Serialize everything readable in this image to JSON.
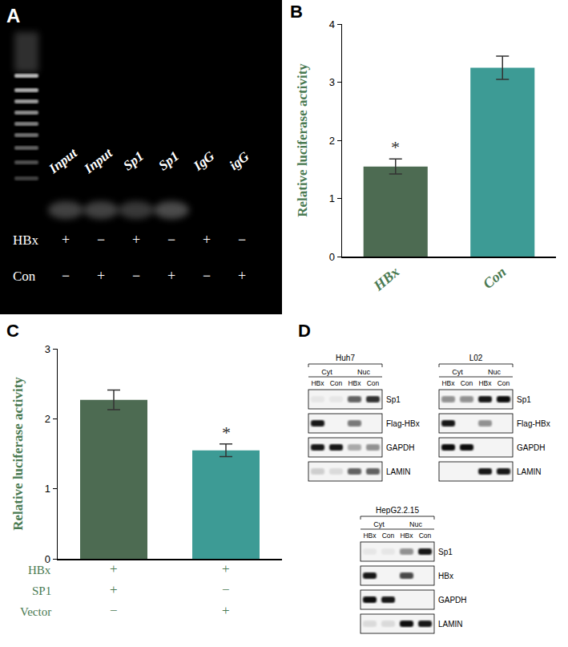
{
  "chart_data": [
    {
      "label": "B",
      "type": "bar",
      "categories": [
        "HBx",
        "Con"
      ],
      "values": [
        1.55,
        3.25
      ],
      "errors": [
        0.13,
        0.2
      ],
      "colors": [
        "#4d6b52",
        "#3d9b95"
      ],
      "y_label": "Relative luciferase activity",
      "ylim": [
        0,
        4
      ],
      "yticks": [
        0,
        1,
        2,
        3,
        4
      ],
      "grid": false,
      "annotations": [
        {
          "text": "*",
          "index": 0
        }
      ]
    },
    {
      "label": "C",
      "type": "bar",
      "categories": [
        null,
        null
      ],
      "values": [
        2.27,
        1.55
      ],
      "errors": [
        0.14,
        0.09
      ],
      "colors": [
        "#4d6b52",
        "#3d9b95"
      ],
      "y_label": "Relative luciferase activity",
      "ylim": [
        0,
        3
      ],
      "yticks": [
        0,
        1,
        2,
        3
      ],
      "grid": false,
      "tick_labels": "y",
      "conditions": [
        {
          "label": "HBx",
          "values": [
            "+",
            "+"
          ]
        },
        {
          "label": "SP1",
          "values": [
            "+",
            "−"
          ]
        },
        {
          "label": "Vector",
          "values": [
            "−",
            "+"
          ]
        }
      ],
      "annotations": [
        {
          "text": "*",
          "index": 1
        }
      ]
    }
  ],
  "gel": {
    "label": "A",
    "lanes": [
      "Input",
      "Input",
      "Sp1",
      "Sp1",
      "IgG",
      "igG"
    ],
    "band_intensity": [
      0.35,
      0.35,
      0.3,
      0.4,
      0,
      0
    ],
    "rows": [
      {
        "label": "HBx",
        "values": [
          "+",
          "−",
          "+",
          "−",
          "+",
          "−"
        ]
      },
      {
        "label": "Con",
        "values": [
          "−",
          "+",
          "−",
          "+",
          "−",
          "+"
        ]
      }
    ]
  },
  "blots": {
    "label": "D",
    "groups": [
      {
        "cell_line": "Huh7",
        "fractions": [
          "Cyt",
          "Nuc"
        ],
        "lanes": [
          "HBx",
          "Con",
          "HBx",
          "Con"
        ],
        "rows": [
          {
            "label": "Sp1",
            "bands": [
              0.05,
              0.05,
              0.6,
              0.8
            ]
          },
          {
            "label": "Flag-HBx",
            "bands": [
              0.9,
              0,
              0.5,
              0
            ]
          },
          {
            "label": "GAPDH",
            "bands": [
              0.9,
              0.9,
              0.3,
              0.4
            ]
          },
          {
            "label": "LAMIN",
            "bands": [
              0.15,
              0.1,
              0.6,
              0.6
            ]
          }
        ]
      },
      {
        "cell_line": "L02",
        "fractions": [
          "Cyt",
          "Nuc"
        ],
        "lanes": [
          "HBx",
          "Con",
          "HBx",
          "Con"
        ],
        "rows": [
          {
            "label": "Sp1",
            "bands": [
              0.4,
              0.4,
              0.9,
              0.95
            ]
          },
          {
            "label": "Flag-HBx",
            "bands": [
              0.9,
              0,
              0.4,
              0
            ]
          },
          {
            "label": "GAPDH",
            "bands": [
              0.95,
              0.95,
              0,
              0
            ]
          },
          {
            "label": "LAMIN",
            "bands": [
              0,
              0,
              0.9,
              0.9
            ]
          }
        ]
      },
      {
        "cell_line": "HepG2.2.15",
        "fractions": [
          "Cyt",
          "Nuc"
        ],
        "lanes": [
          "HBx",
          "Con",
          "HBx",
          "Con"
        ],
        "rows": [
          {
            "label": "Sp1",
            "bands": [
              0.05,
              0.05,
              0.4,
              0.9
            ]
          },
          {
            "label": "HBx",
            "bands": [
              0.9,
              0,
              0.7,
              0
            ]
          },
          {
            "label": "GAPDH",
            "bands": [
              0.95,
              0.9,
              0,
              0
            ]
          },
          {
            "label": "LAMIN",
            "bands": [
              0.1,
              0.1,
              0.95,
              0.9
            ]
          }
        ]
      }
    ]
  }
}
